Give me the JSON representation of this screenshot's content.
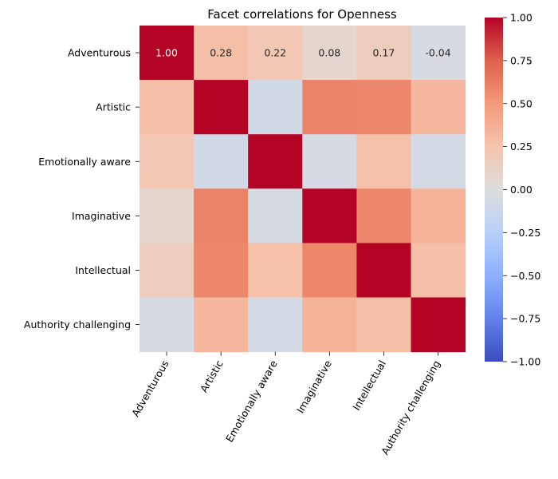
{
  "chart_data": {
    "type": "heatmap",
    "title": "Facet correlations for Openness",
    "xlabel": "",
    "ylabel": "",
    "categories": [
      "Adventurous",
      "Artistic",
      "Emotionally aware",
      "Imaginative",
      "Intellectual",
      "Authority challenging"
    ],
    "matrix": [
      [
        1.0,
        0.28,
        0.22,
        0.08,
        0.17,
        -0.04
      ],
      [
        0.28,
        1.0,
        -0.08,
        0.6,
        0.58,
        0.33
      ],
      [
        0.22,
        -0.08,
        1.0,
        -0.05,
        0.27,
        -0.06
      ],
      [
        0.08,
        0.6,
        -0.05,
        1.0,
        0.58,
        0.35
      ],
      [
        0.17,
        0.58,
        0.27,
        0.58,
        1.0,
        0.28
      ],
      [
        -0.04,
        0.33,
        -0.06,
        0.35,
        0.28,
        1.0
      ]
    ],
    "annotations": [
      {
        "row": 0,
        "col": 0,
        "text": "1.00"
      },
      {
        "row": 0,
        "col": 1,
        "text": "0.28"
      },
      {
        "row": 0,
        "col": 2,
        "text": "0.22"
      },
      {
        "row": 0,
        "col": 3,
        "text": "0.08"
      },
      {
        "row": 0,
        "col": 4,
        "text": "0.17"
      },
      {
        "row": 0,
        "col": 5,
        "text": "-0.04"
      }
    ],
    "colormap": "coolwarm",
    "vmin": -1.0,
    "vmax": 1.0,
    "colorbar_ticks": [
      "1.00",
      "0.75",
      "0.50",
      "0.25",
      "0.00",
      "−0.25",
      "−0.50",
      "−0.75",
      "−1.00"
    ],
    "colorbar_tick_values": [
      1.0,
      0.75,
      0.5,
      0.25,
      0.0,
      -0.25,
      -0.5,
      -0.75,
      -1.0
    ],
    "grid": false
  }
}
